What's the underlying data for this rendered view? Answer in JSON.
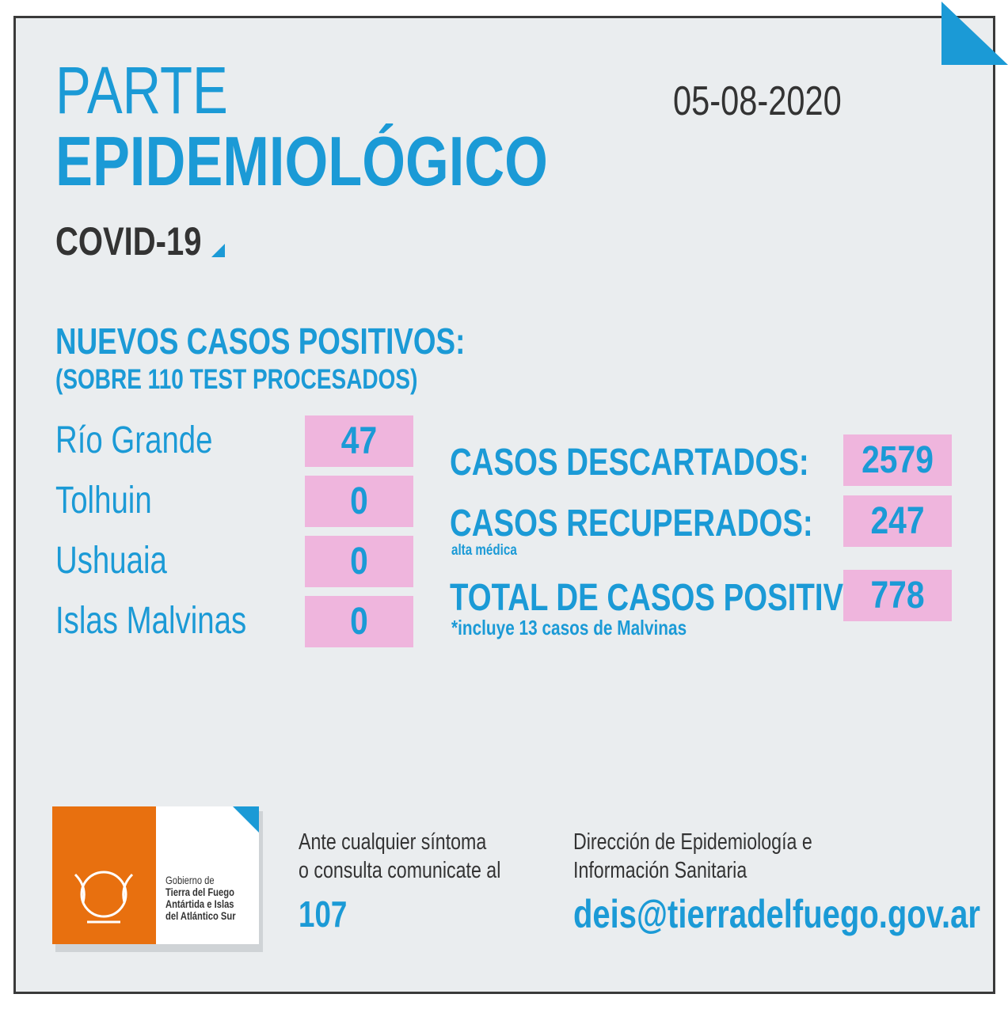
{
  "header": {
    "title_line1": "PARTE",
    "title_line2": "EPIDEMIOLÓGICO",
    "subtitle": "COVID-19",
    "date": "05-08-2020"
  },
  "new_cases": {
    "heading": "NUEVOS CASOS POSITIVOS:",
    "subheading": "(SOBRE 110 TEST PROCESADOS)",
    "rows": [
      {
        "place": "Río Grande",
        "count": 47
      },
      {
        "place": "Tolhuin",
        "count": 0
      },
      {
        "place": "Ushuaia",
        "count": 0
      },
      {
        "place": "Islas Malvinas",
        "count": 0
      }
    ]
  },
  "totals": [
    {
      "label": "CASOS DESCARTADOS:",
      "value": 2579
    },
    {
      "label": "CASOS RECUPERADOS:",
      "note": "alta médica",
      "value": 247
    },
    {
      "label": "TOTAL DE CASOS POSITIVOS",
      "note": "*incluye 13 casos de Malvinas",
      "value": 778
    }
  ],
  "footer": {
    "logo_lines": [
      "Gobierno de",
      "Tierra del Fuego",
      "Antártida e Islas",
      "del Atlántico Sur"
    ],
    "contact_lines": [
      "Ante cualquier síntoma",
      "o consulta comunicate al"
    ],
    "phone": "107",
    "office_lines": [
      "Dirección de Epidemiología e",
      "Información Sanitaria"
    ],
    "email": "deis@tierradelfuego.gov.ar"
  }
}
